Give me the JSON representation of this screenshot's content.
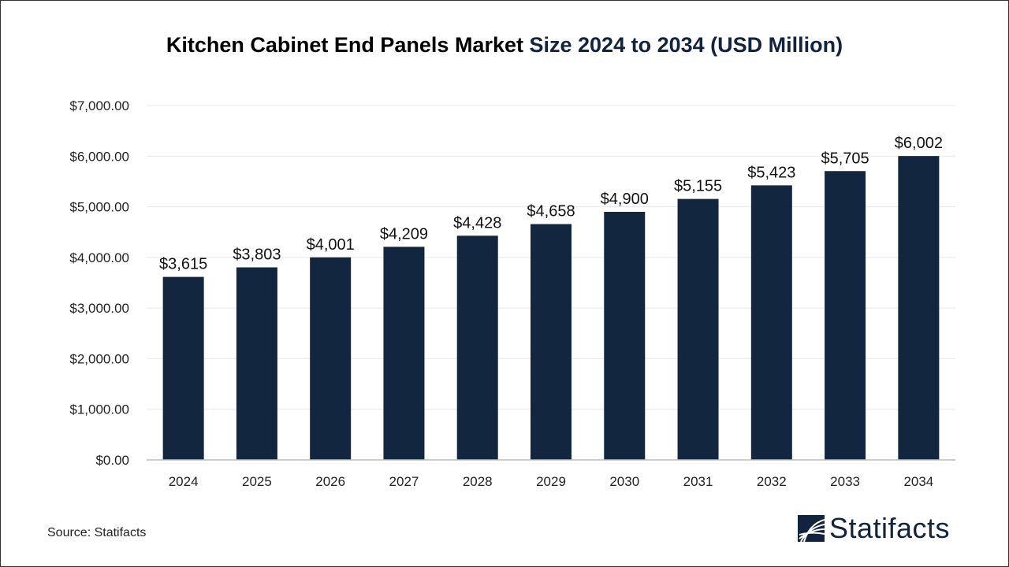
{
  "title_part1": "Kitchen Cabinet End Panels Market",
  "title_part2": "Size 2024 to 2034 (USD Million)",
  "source": "Source: Statifacts",
  "logo_text": "Statifacts",
  "colors": {
    "bar": "#12263f",
    "title_accent": "#12233f",
    "grid": "#e8e8e8"
  },
  "chart_data": {
    "type": "bar",
    "title": "Kitchen Cabinet End Panels Market Size 2024 to 2034 (USD Million)",
    "categories": [
      "2024",
      "2025",
      "2026",
      "2027",
      "2028",
      "2029",
      "2030",
      "2031",
      "2032",
      "2033",
      "2034"
    ],
    "values": [
      3615,
      3803,
      4001,
      4209,
      4428,
      4658,
      4900,
      5155,
      5423,
      5705,
      6002
    ],
    "data_labels": [
      "$3,615",
      "$3,803",
      "$4,001",
      "$4,209",
      "$4,428",
      "$4,658",
      "$4,900",
      "$5,155",
      "$5,423",
      "$5,705",
      "$6,002"
    ],
    "yticks": [
      "$0.00",
      "$1,000.00",
      "$2,000.00",
      "$3,000.00",
      "$4,000.00",
      "$5,000.00",
      "$6,000.00",
      "$7,000.00"
    ],
    "ylim": [
      0,
      7000
    ],
    "grid": true,
    "xlabel": "",
    "ylabel": ""
  }
}
